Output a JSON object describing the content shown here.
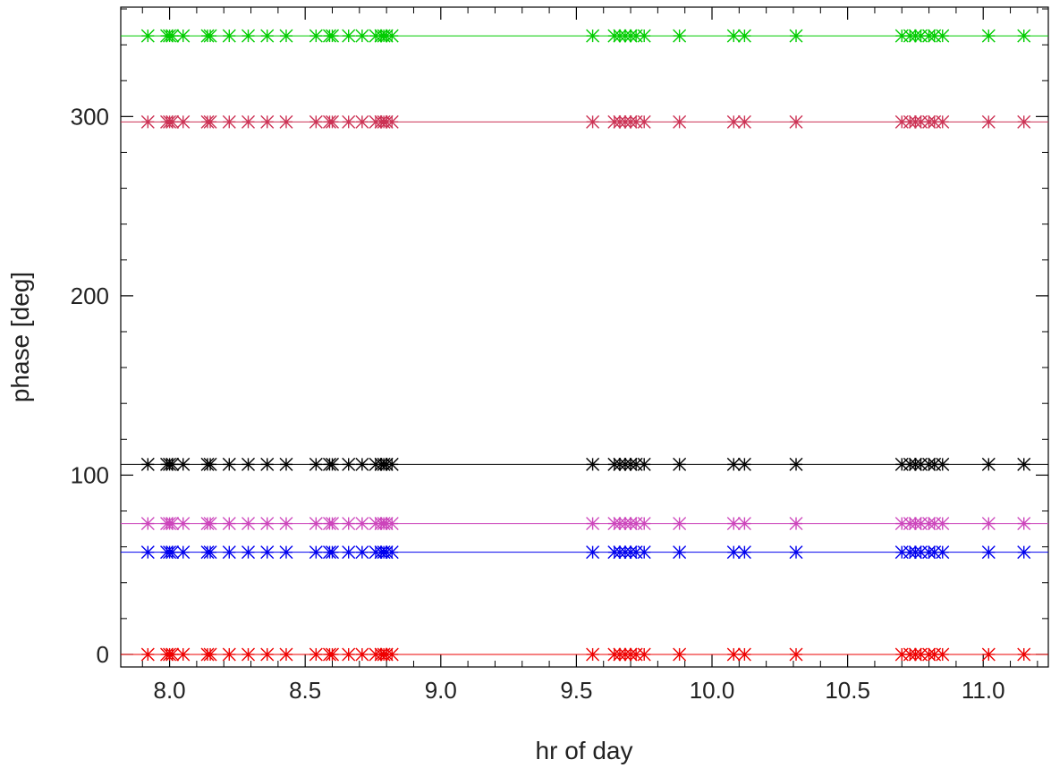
{
  "chart_data": {
    "type": "scatter",
    "title": "",
    "xlabel": "hr of day",
    "ylabel": "phase [deg]",
    "xlim": [
      7.82,
      11.24
    ],
    "ylim": [
      -7,
      361
    ],
    "xticks": [
      8.0,
      8.5,
      9.0,
      9.5,
      10.0,
      10.5,
      11.0
    ],
    "xtick_labels": [
      "8.0",
      "8.5",
      "9.0",
      "9.5",
      "10.0",
      "10.5",
      "11.0"
    ],
    "yticks": [
      0,
      100,
      200,
      300
    ],
    "ytick_labels": [
      "0",
      "100",
      "200",
      "300"
    ],
    "grid": false,
    "legend": false,
    "x": [
      7.92,
      7.99,
      8.0,
      8.01,
      8.05,
      8.14,
      8.15,
      8.22,
      8.29,
      8.36,
      8.43,
      8.54,
      8.59,
      8.6,
      8.66,
      8.71,
      8.76,
      8.78,
      8.79,
      8.8,
      8.82,
      9.56,
      9.64,
      9.66,
      9.68,
      9.7,
      9.72,
      9.75,
      9.88,
      10.08,
      10.12,
      10.31,
      10.7,
      10.73,
      10.75,
      10.77,
      10.8,
      10.82,
      10.85,
      11.02,
      11.15
    ],
    "series": [
      {
        "color": "#00cc00",
        "y": 345
      },
      {
        "color": "#cc3355",
        "y": 297
      },
      {
        "color": "#000000",
        "y": 106
      },
      {
        "color": "#cc44bb",
        "y": 73
      },
      {
        "color": "#0000ee",
        "y": 57
      },
      {
        "color": "#ee0000",
        "y": 0
      }
    ]
  }
}
